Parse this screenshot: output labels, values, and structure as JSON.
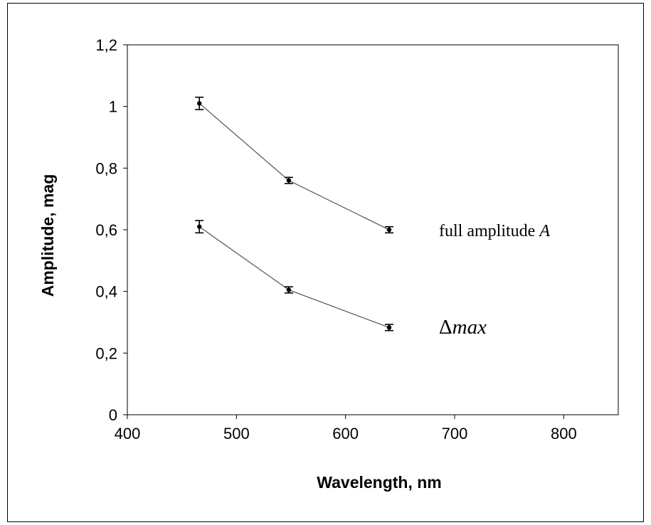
{
  "chart_data": {
    "type": "line",
    "title": "",
    "xlabel": "Wavelength, nm",
    "ylabel": "Amplitude, mag",
    "xlim": [
      400,
      850
    ],
    "ylim": [
      0,
      1.2
    ],
    "x_ticks": [
      400,
      500,
      600,
      700,
      800
    ],
    "x_tick_labels": [
      "400",
      "500",
      "600",
      "700",
      "800"
    ],
    "y_ticks": [
      0,
      0.2,
      0.4,
      0.6,
      0.8,
      1.0,
      1.2
    ],
    "y_tick_labels": [
      "0",
      "0,2",
      "0,4",
      "0,6",
      "0,8",
      "1",
      "1,2"
    ],
    "grid": false,
    "series": [
      {
        "x": [
          466,
          548,
          640
        ],
        "y": [
          1.01,
          0.76,
          0.6
        ],
        "yerr": [
          0.02,
          0.01,
          0.01
        ],
        "color": "#606060",
        "marker_color": "#000000"
      },
      {
        "x": [
          466,
          548,
          640
        ],
        "y": [
          0.61,
          0.405,
          0.283
        ],
        "yerr": [
          0.02,
          0.01,
          0.01
        ],
        "color": "#606060",
        "marker_color": "#000000"
      }
    ],
    "annotations": [
      {
        "text": "full amplitude ",
        "italic_part": "A",
        "series": 0
      },
      {
        "text": "Δ",
        "italic_part": "max",
        "series": 1
      }
    ]
  }
}
